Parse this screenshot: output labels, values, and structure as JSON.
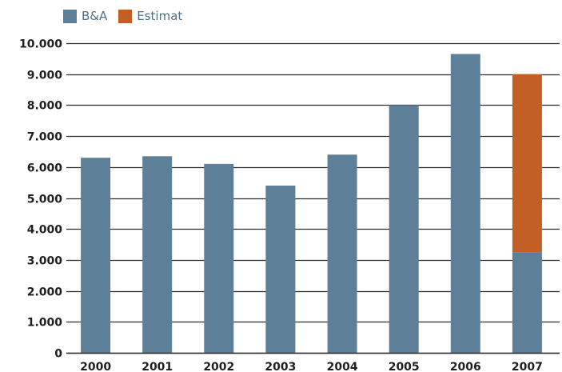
{
  "chart_data": {
    "type": "bar",
    "categories": [
      "2000",
      "2001",
      "2002",
      "2003",
      "2004",
      "2005",
      "2006",
      "2007"
    ],
    "series": [
      {
        "name": "B&A",
        "color": "#5e7f98",
        "values": [
          6300,
          6350,
          6100,
          5400,
          6400,
          8000,
          9650,
          3250
        ]
      },
      {
        "name": "Estimat",
        "color": "#c15f24",
        "values": [
          0,
          0,
          0,
          0,
          0,
          0,
          0,
          5750
        ]
      }
    ],
    "stacked": true,
    "ylim": [
      0,
      10000
    ],
    "yticks": [
      0,
      1000,
      2000,
      3000,
      4000,
      5000,
      6000,
      7000,
      8000,
      9000,
      10000
    ],
    "ytick_labels": [
      "0",
      "1.000",
      "2.000",
      "3.000",
      "4.000",
      "5.000",
      "6.000",
      "7.000",
      "8.000",
      "9.000",
      "10.000"
    ],
    "grid": true,
    "legend_position": "top-left",
    "title": "",
    "xlabel": "",
    "ylabel": ""
  }
}
